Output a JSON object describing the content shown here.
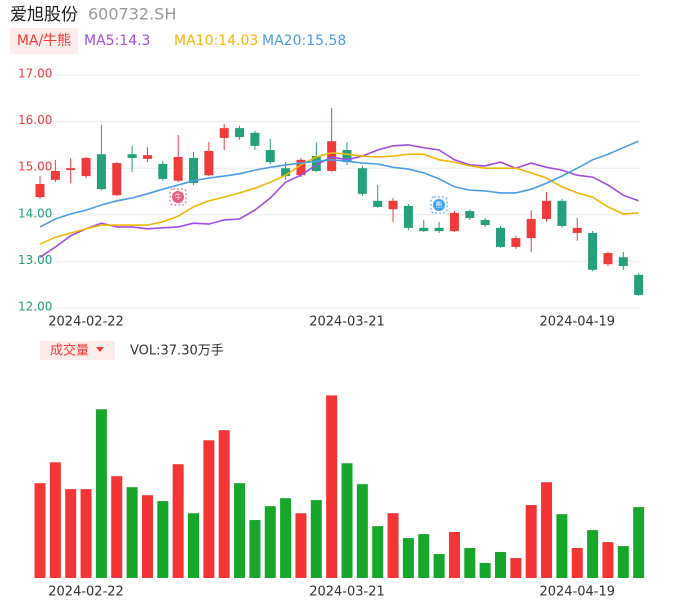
{
  "chart_data": [
    {
      "type": "candlestick",
      "title": "爱旭股份",
      "subtitle": "600732.SH",
      "legend_title": "MA/牛熊",
      "categories": [
        null,
        null,
        null,
        "2024-02-22",
        null,
        null,
        null,
        null,
        null,
        null,
        null,
        null,
        null,
        null,
        null,
        null,
        null,
        null,
        null,
        null,
        "2024-03-21",
        null,
        null,
        null,
        null,
        null,
        null,
        null,
        null,
        null,
        null,
        null,
        null,
        null,
        null,
        "2024-04-19",
        null,
        null,
        null,
        null
      ],
      "open": [
        14.38,
        14.75,
        14.96,
        14.83,
        15.3,
        14.42,
        15.3,
        15.2,
        15.09,
        14.73,
        15.22,
        14.85,
        15.65,
        15.86,
        15.76,
        15.39,
        15.0,
        14.85,
        15.26,
        14.94,
        15.39,
        15.0,
        14.3,
        14.12,
        14.19,
        13.72,
        13.72,
        13.65,
        14.08,
        13.89,
        13.72,
        13.31,
        13.5,
        13.91,
        14.3,
        13.61,
        13.61,
        12.94,
        13.09,
        12.71
      ],
      "high": [
        14.83,
        15.18,
        15.22,
        15.24,
        15.93,
        15.13,
        15.48,
        15.45,
        15.15,
        15.71,
        15.35,
        15.56,
        15.95,
        15.91,
        15.8,
        15.63,
        15.13,
        15.22,
        15.56,
        16.29,
        15.56,
        15.05,
        14.64,
        14.36,
        14.23,
        13.89,
        13.85,
        14.08,
        14.12,
        13.93,
        13.76,
        13.55,
        14.1,
        14.49,
        14.34,
        13.93,
        13.65,
        13.2,
        13.2,
        12.75
      ],
      "low": [
        14.34,
        14.7,
        14.68,
        14.79,
        14.53,
        14.4,
        14.92,
        15.13,
        14.73,
        14.7,
        14.64,
        14.83,
        15.39,
        15.61,
        15.39,
        15.09,
        14.75,
        14.81,
        14.92,
        14.92,
        15.07,
        14.4,
        14.15,
        13.85,
        13.67,
        13.63,
        13.61,
        13.63,
        13.89,
        13.74,
        13.29,
        13.27,
        13.2,
        13.85,
        13.72,
        13.44,
        12.79,
        12.9,
        12.82,
        12.26
      ],
      "close": [
        14.66,
        14.94,
        15.0,
        15.22,
        14.55,
        15.11,
        15.22,
        15.28,
        14.77,
        15.24,
        14.68,
        15.37,
        15.86,
        15.67,
        15.48,
        15.13,
        14.83,
        15.18,
        14.94,
        15.58,
        15.13,
        14.45,
        14.17,
        14.3,
        13.72,
        13.65,
        13.65,
        14.04,
        13.93,
        13.78,
        13.31,
        13.5,
        13.91,
        14.3,
        13.76,
        13.72,
        12.82,
        13.18,
        12.9,
        12.28
      ],
      "up_color": "#f03b3b",
      "down_color": "#24a07c",
      "series": [
        {
          "name": "MA5:14.3",
          "color": "#a24de6",
          "values": [
            13.09,
            13.31,
            13.55,
            13.7,
            13.82,
            13.74,
            13.74,
            13.7,
            13.72,
            13.74,
            13.82,
            13.8,
            13.89,
            13.91,
            14.1,
            14.36,
            14.7,
            14.85,
            15.07,
            15.24,
            15.18,
            15.26,
            15.39,
            15.48,
            15.5,
            15.44,
            15.39,
            15.18,
            15.07,
            15.05,
            15.13,
            15.0,
            15.11,
            15.02,
            14.96,
            14.85,
            14.81,
            14.64,
            14.42,
            14.3
          ]
        },
        {
          "name": "MA10:14.03",
          "color": "#f2b705",
          "values": [
            13.37,
            13.52,
            13.61,
            13.7,
            13.78,
            13.78,
            13.78,
            13.78,
            13.85,
            13.97,
            14.17,
            14.3,
            14.38,
            14.47,
            14.57,
            14.7,
            14.85,
            15.07,
            15.24,
            15.33,
            15.3,
            15.26,
            15.24,
            15.26,
            15.3,
            15.3,
            15.18,
            15.13,
            15.05,
            15.0,
            15.0,
            15.0,
            14.9,
            14.79,
            14.6,
            14.47,
            14.38,
            14.17,
            14.02,
            14.04
          ]
        },
        {
          "name": "MA20:15.58",
          "color": "#4b9ee8",
          "values": [
            13.74,
            13.91,
            14.02,
            14.1,
            14.21,
            14.3,
            14.36,
            14.45,
            14.55,
            14.64,
            14.73,
            14.79,
            14.83,
            14.88,
            14.96,
            15.02,
            15.07,
            15.11,
            15.15,
            15.18,
            15.15,
            15.11,
            15.09,
            15.02,
            14.98,
            14.9,
            14.77,
            14.6,
            14.53,
            14.51,
            14.47,
            14.47,
            14.55,
            14.68,
            14.83,
            15.0,
            15.18,
            15.3,
            15.44,
            15.58
          ]
        }
      ],
      "ylim": [
        12,
        17
      ],
      "yticks": [
        {
          "value": 17,
          "label": "17.00"
        },
        {
          "value": 16,
          "label": "16.00"
        },
        {
          "value": 15,
          "label": "15.00"
        },
        {
          "value": 14,
          "label": "14.00"
        },
        {
          "value": 13,
          "label": "13.00"
        },
        {
          "value": 12,
          "label": "12.00"
        }
      ],
      "ytick_colors": [
        "#f03b3b",
        "#f03b3b",
        "#f03b3b",
        "#24a07c",
        "#24a07c",
        "#24a07c"
      ],
      "grid": true,
      "annotations": [
        "牛",
        "熊"
      ]
    },
    {
      "type": "bar",
      "title": "成交量",
      "subtitle": "VOL:37.30万手",
      "categories": [
        null,
        null,
        null,
        "2024-02-22",
        null,
        null,
        null,
        null,
        null,
        null,
        null,
        null,
        null,
        null,
        null,
        null,
        null,
        null,
        null,
        null,
        "2024-03-21",
        null,
        null,
        null,
        null,
        null,
        null,
        null,
        null,
        null,
        null,
        null,
        null,
        null,
        null,
        "2024-04-19",
        null,
        null,
        null,
        null
      ],
      "values": [
        49.9,
        60.9,
        46.8,
        46.8,
        88.8,
        53.6,
        47.8,
        43.6,
        40.5,
        59.9,
        34.1,
        72.5,
        77.8,
        49.9,
        30.5,
        37.8,
        42.0,
        34.1,
        41.0,
        96.1,
        60.4,
        49.4,
        27.3,
        34.1,
        21.0,
        23.1,
        12.6,
        24.2,
        15.8,
        7.9,
        13.7,
        10.5,
        38.4,
        50.4,
        33.6,
        15.8,
        25.2,
        18.9,
        16.8,
        37.3
      ],
      "up_color": "#f43535",
      "down_color": "#17a82b",
      "ylim": [
        0,
        100
      ]
    }
  ]
}
